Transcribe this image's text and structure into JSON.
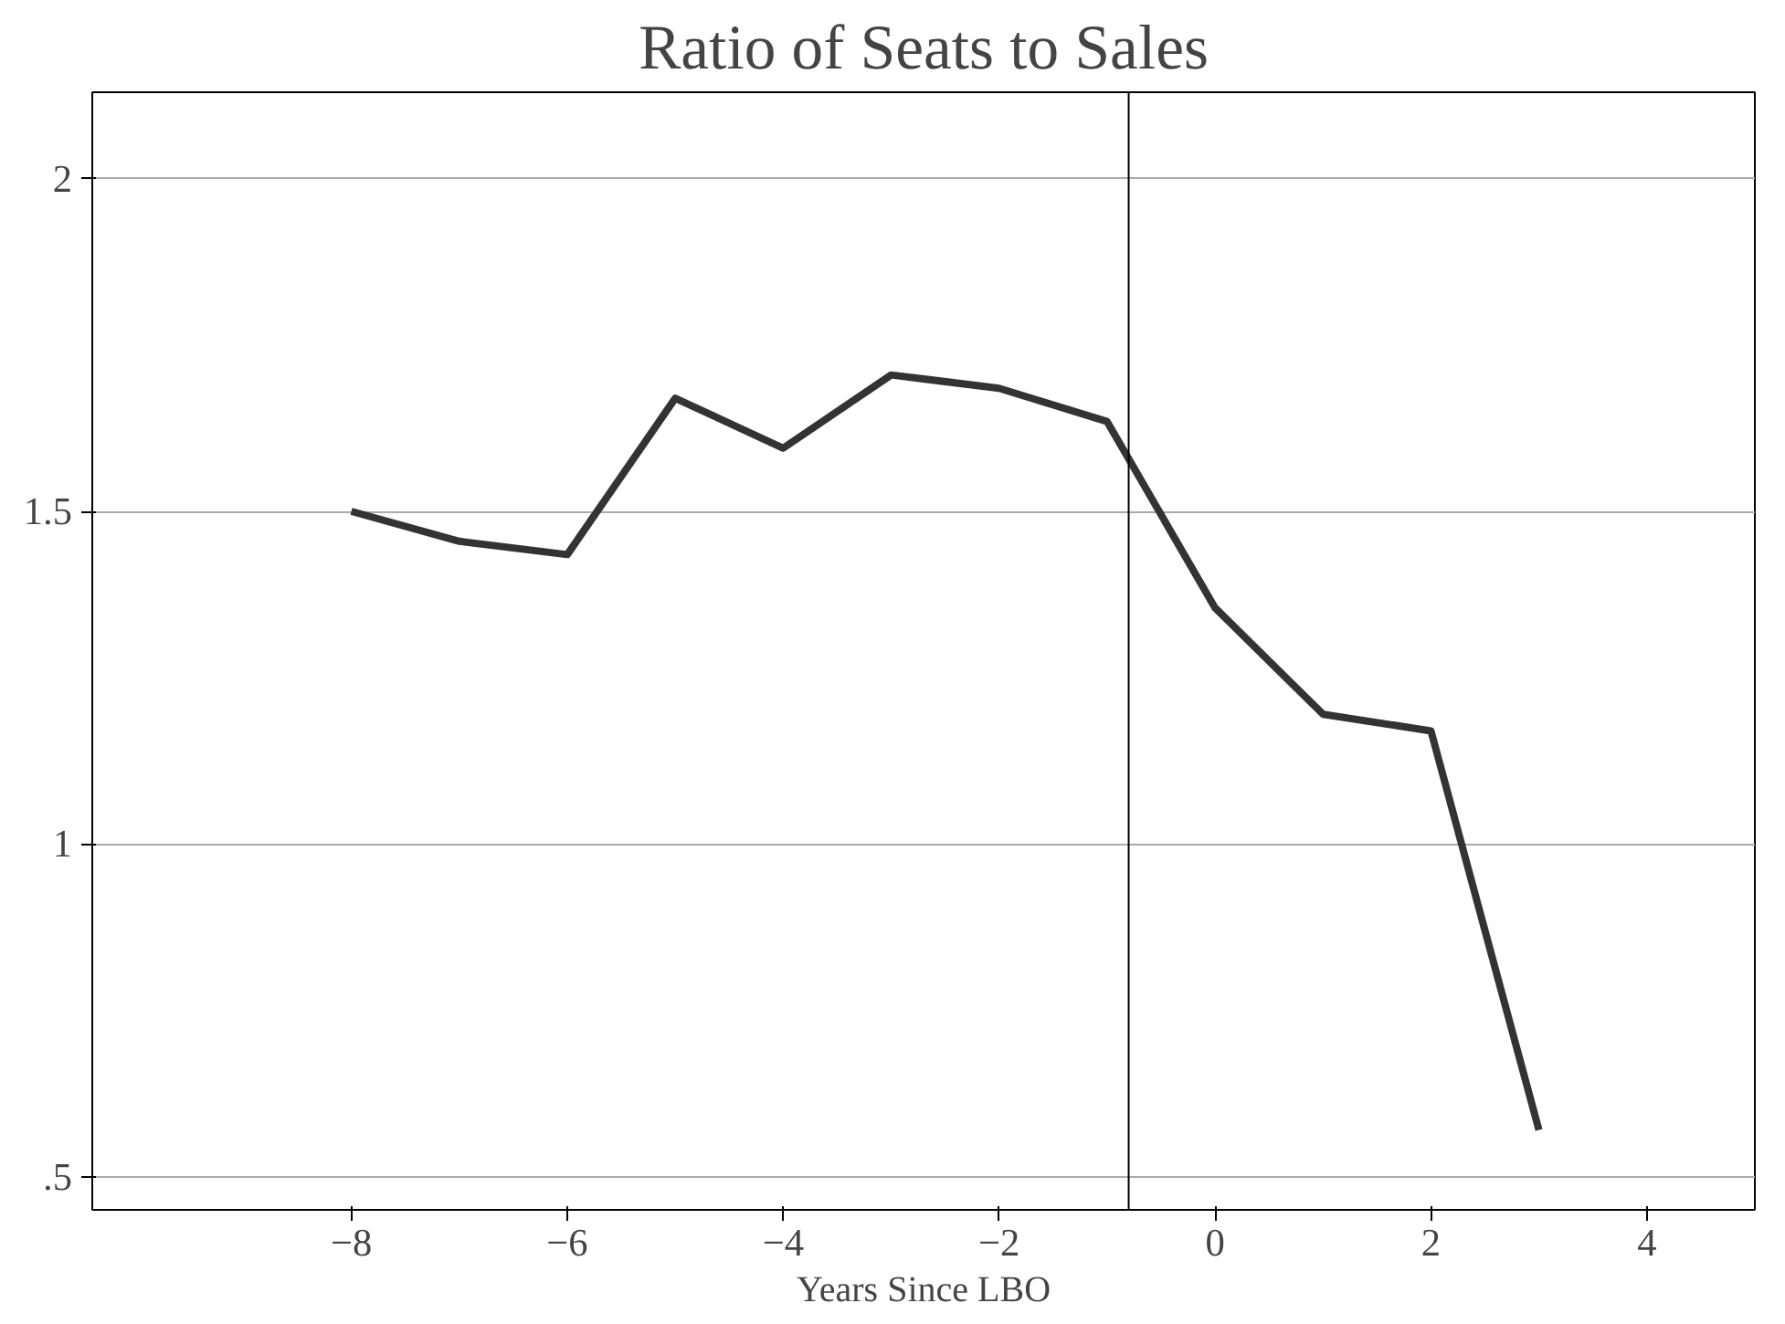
{
  "chart_data": {
    "type": "line",
    "title": "Ratio of Seats to Sales",
    "xlabel": "Years Since LBO",
    "x": [
      -8,
      -7,
      -6,
      -5,
      -4,
      -3,
      -2,
      -1,
      0,
      1,
      2,
      3
    ],
    "series": [
      {
        "color": "#333333",
        "values": [
          1.5,
          1.455,
          1.435,
          1.67,
          1.595,
          1.705,
          1.685,
          1.635,
          1.355,
          1.195,
          1.17,
          0.57
        ]
      }
    ],
    "xlim": [
      -10.4,
      5
    ],
    "ylim": [
      0.45,
      2.13
    ],
    "xticks": [
      {
        "value": -8,
        "label": "−8"
      },
      {
        "value": -6,
        "label": "−6"
      },
      {
        "value": -4,
        "label": "−4"
      },
      {
        "value": -2,
        "label": "−2"
      },
      0,
      2,
      4
    ],
    "yticks": [
      {
        "value": 0.5,
        "label": ".5"
      },
      1,
      1.5,
      2
    ],
    "grid": "y",
    "marker": "none",
    "line_style": "solid",
    "ref_lines": [
      {
        "axis": "x",
        "value": -0.8,
        "color": "#000000"
      }
    ]
  }
}
